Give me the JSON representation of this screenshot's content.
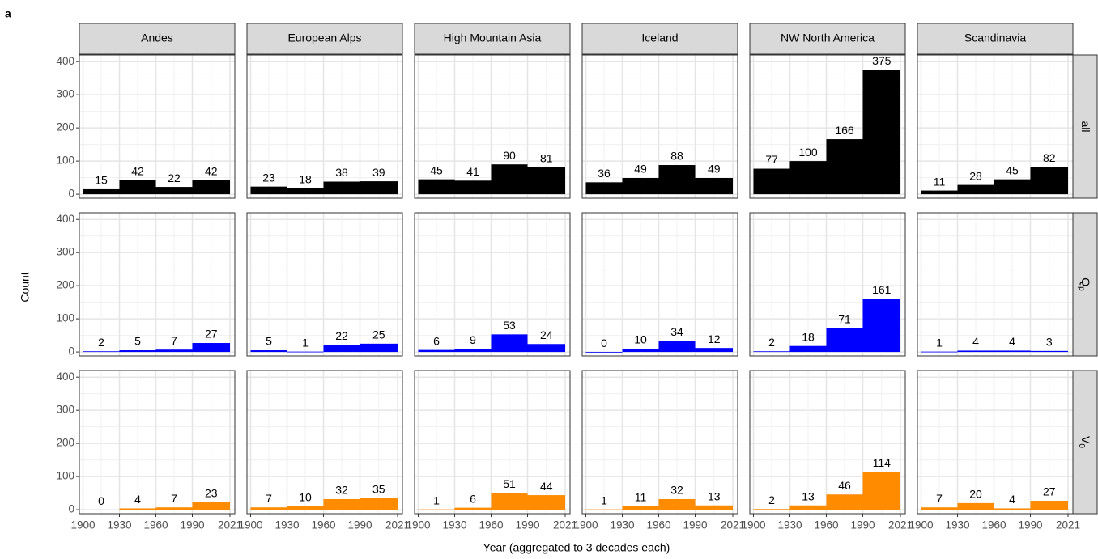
{
  "panel_label": "a",
  "chart_data": {
    "type": "histogram",
    "xlabel": "Year (aggregated to 3 decades each)",
    "ylabel": "Count",
    "columns": [
      "Andes",
      "European Alps",
      "High Mountain Asia",
      "Iceland",
      "NW North America",
      "Scandinavia"
    ],
    "rows": [
      {
        "text": "all"
      },
      {
        "text": "Q",
        "sub": "p"
      },
      {
        "text": "V",
        "sub": "0"
      }
    ],
    "bins": [
      1900,
      1930,
      1960,
      1990,
      2021
    ],
    "xlim": [
      1897,
      2025
    ],
    "ylim": [
      -12,
      420
    ],
    "xticks": [
      1900,
      1930,
      1960,
      1990,
      2021
    ],
    "yticks": [
      0,
      100,
      200,
      300,
      400
    ],
    "grid": true,
    "series": [
      {
        "name": "all",
        "color": "#000000",
        "values": [
          [
            15,
            42,
            22,
            42
          ],
          [
            23,
            18,
            38,
            39
          ],
          [
            45,
            41,
            90,
            81
          ],
          [
            36,
            49,
            88,
            49
          ],
          [
            77,
            100,
            166,
            375
          ],
          [
            11,
            28,
            45,
            82
          ]
        ]
      },
      {
        "name": "Qp",
        "color": "#0000ff",
        "values": [
          [
            2,
            5,
            7,
            27
          ],
          [
            5,
            1,
            22,
            25
          ],
          [
            6,
            9,
            53,
            24
          ],
          [
            0,
            10,
            34,
            12
          ],
          [
            2,
            18,
            71,
            161
          ],
          [
            1,
            4,
            4,
            3
          ]
        ]
      },
      {
        "name": "V0",
        "color": "#ff8c00",
        "values": [
          [
            0,
            4,
            7,
            23
          ],
          [
            7,
            10,
            32,
            35
          ],
          [
            1,
            6,
            51,
            44
          ],
          [
            1,
            11,
            32,
            13
          ],
          [
            2,
            13,
            46,
            114
          ],
          [
            7,
            20,
            4,
            27
          ]
        ]
      }
    ]
  }
}
